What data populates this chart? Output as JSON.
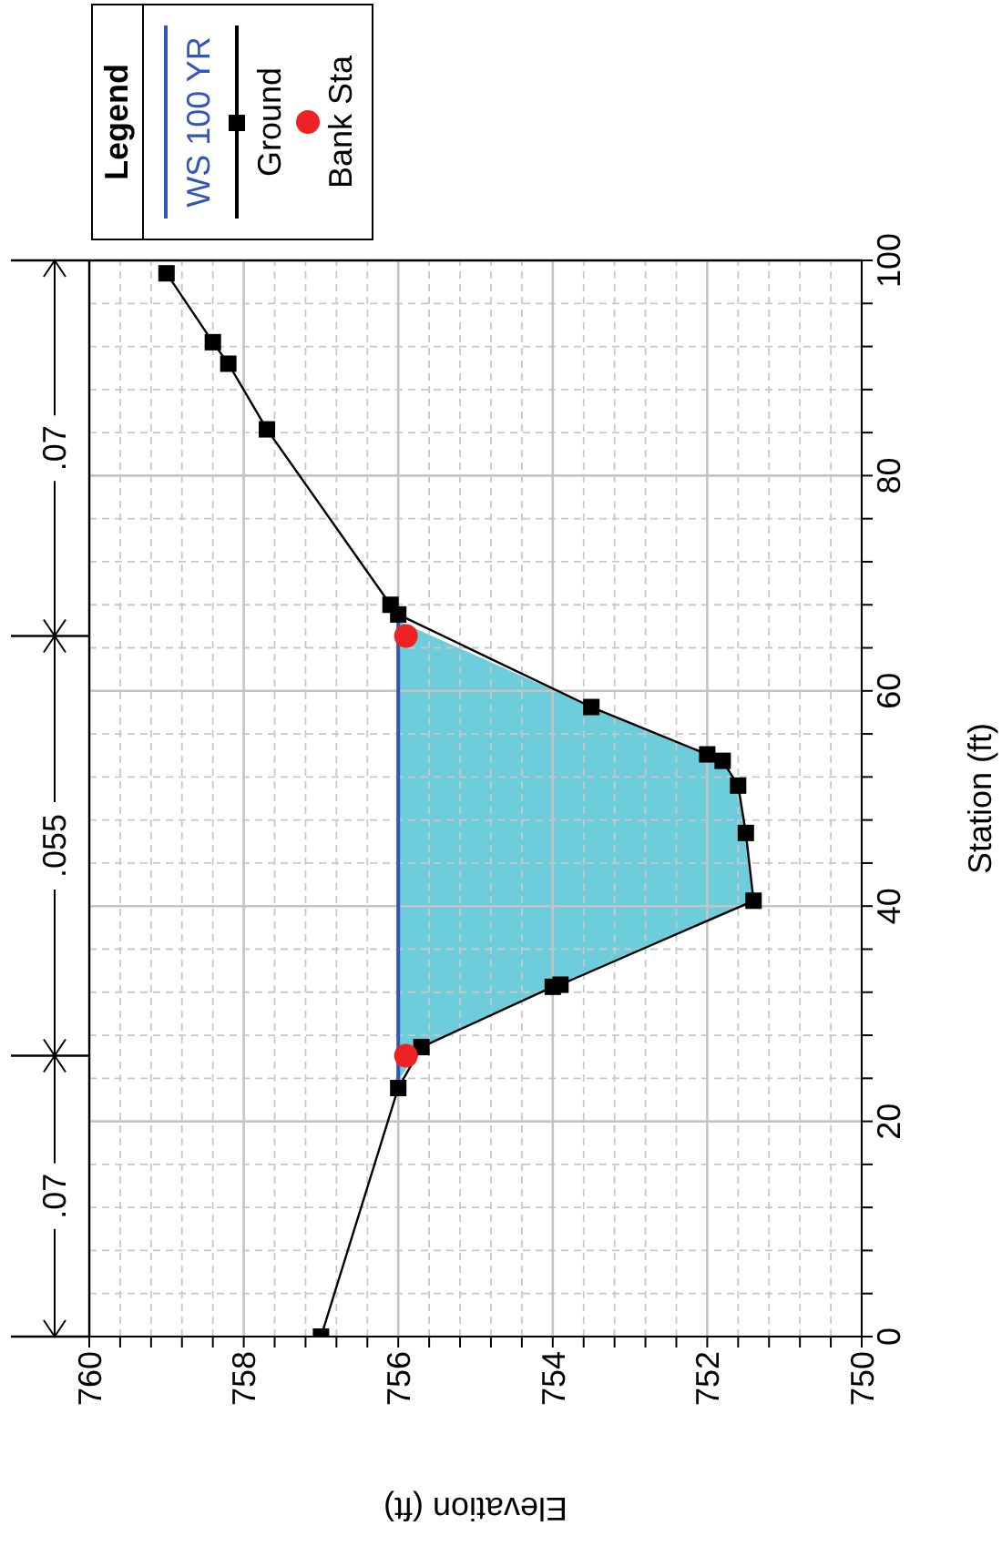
{
  "chart_data": {
    "type": "line",
    "xlabel": "Elevation (ft)",
    "ylabel": "Station (ft)",
    "legend_title": "Legend",
    "legend": "top left",
    "grid": true,
    "xlim": [
      760,
      750
    ],
    "ylim": [
      0,
      100
    ],
    "yticks": [
      0,
      {
        "value": 4,
        "label": null
      },
      {
        "value": 8,
        "label": null
      },
      {
        "value": 12,
        "label": null
      },
      {
        "value": 16,
        "label": null
      },
      20,
      {
        "value": 24,
        "label": null
      },
      {
        "value": 28,
        "label": null
      },
      {
        "value": 32,
        "label": null
      },
      {
        "value": 36,
        "label": null
      },
      40,
      {
        "value": 44,
        "label": null
      },
      {
        "value": 48,
        "label": null
      },
      {
        "value": 52,
        "label": null
      },
      {
        "value": 56,
        "label": null
      },
      60,
      {
        "value": 64,
        "label": null
      },
      {
        "value": 68,
        "label": null
      },
      {
        "value": 72,
        "label": null
      },
      {
        "value": 76,
        "label": null
      },
      80,
      {
        "value": 84,
        "label": null
      },
      {
        "value": 88,
        "label": null
      },
      {
        "value": 92,
        "label": null
      },
      {
        "value": 96,
        "label": null
      },
      100
    ],
    "xticks": [
      760,
      {
        "value": 759.6,
        "label": null
      },
      {
        "value": 759.2,
        "label": null
      },
      {
        "value": 758.8,
        "label": null
      },
      {
        "value": 758.4,
        "label": null
      },
      758,
      {
        "value": 757.6,
        "label": null
      },
      {
        "value": 757.2,
        "label": null
      },
      {
        "value": 756.8,
        "label": null
      },
      {
        "value": 756.4,
        "label": null
      },
      756,
      {
        "value": 755.6,
        "label": null
      },
      {
        "value": 755.2,
        "label": null
      },
      {
        "value": 754.8,
        "label": null
      },
      {
        "value": 754.4,
        "label": null
      },
      754,
      {
        "value": 753.6,
        "label": null
      },
      {
        "value": 753.2,
        "label": null
      },
      {
        "value": 752.8,
        "label": null
      },
      {
        "value": 752.4,
        "label": null
      },
      752,
      {
        "value": 751.6,
        "label": null
      },
      {
        "value": 751.2,
        "label": null
      },
      {
        "value": 750.8,
        "label": null
      },
      {
        "value": 750.4,
        "label": null
      },
      750
    ],
    "annotations": [
      ".07",
      ".055",
      ".07"
    ],
    "series": [
      {
        "name": "WS 100 YR",
        "type": "line",
        "color": "#3355bb",
        "marker": "none",
        "x": [
          756.0,
          756.0
        ],
        "values": [
          23.8,
          66.5
        ]
      },
      {
        "name": "Ground",
        "color": "#000000",
        "marker": "square",
        "x": [
          757.0,
          756.0,
          755.7,
          754.0,
          753.9,
          751.4,
          751.5,
          751.6,
          751.8,
          752.0,
          753.5,
          756.0,
          756.1,
          757.7,
          758.2,
          758.4,
          759.0
        ],
        "values": [
          0,
          23.1,
          26.9,
          32.5,
          32.7,
          40.5,
          46.8,
          51.2,
          53.5,
          54.1,
          58.5,
          67.1,
          68.0,
          84.3,
          90.4,
          92.4,
          98.8
        ]
      },
      {
        "name": "Bank Sta",
        "type": "scatter",
        "color": "#ee2222",
        "marker": "circle",
        "x": [
          755.9,
          755.9
        ],
        "values": [
          26.1,
          65.1
        ]
      }
    ]
  }
}
